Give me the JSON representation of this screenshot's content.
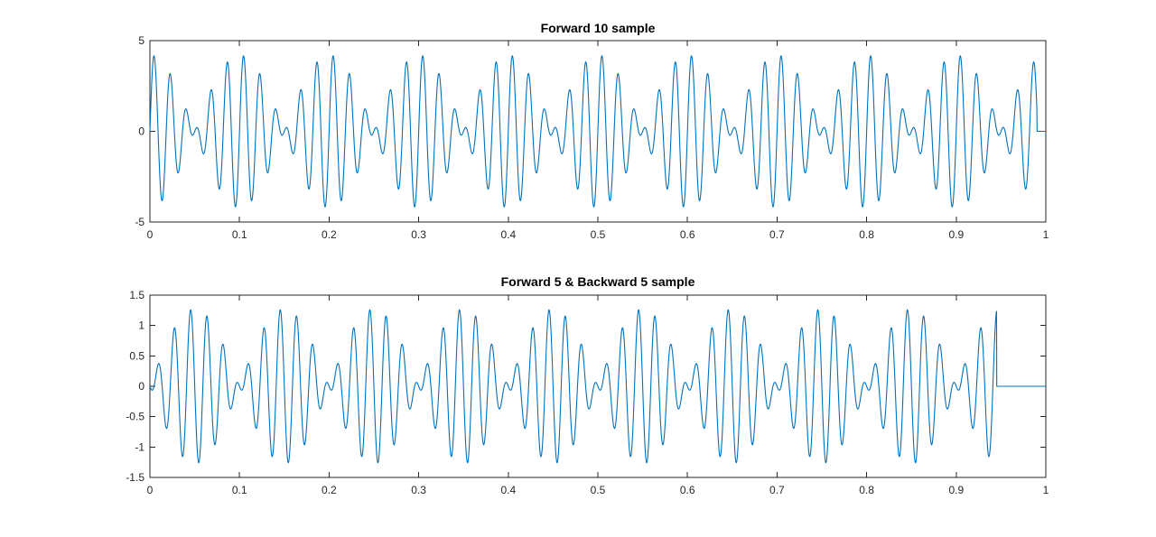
{
  "figure": {
    "background": "#ffffff"
  },
  "chart_data": [
    {
      "type": "line",
      "title": "Forward 10 sample",
      "xlabel": "",
      "ylabel": "",
      "xlim": [
        0,
        1
      ],
      "ylim": [
        -5,
        5
      ],
      "xticks": [
        "0",
        "0.1",
        "0.2",
        "0.3",
        "0.4",
        "0.5",
        "0.6",
        "0.7",
        "0.8",
        "0.9",
        "1"
      ],
      "yticks": [
        "-5",
        "0",
        "5"
      ],
      "grid": false,
      "series": [
        {
          "color": "#0072bd",
          "signal": "sum of sinusoids (approx. 50 Hz + 60 Hz beating, period 0.1)",
          "peaks_within_period": [
            3.5,
            2.3,
            2.3,
            3.5,
            4.2,
            3.5,
            2.3,
            2.3,
            3.5,
            4.2
          ],
          "troughs_within_period": [
            -2.3,
            -3.5,
            -4.2,
            -3.5,
            -2.3,
            -2.3,
            -3.5,
            -4.2,
            -3.5,
            -2.3
          ],
          "zero_after_x": 0.99
        }
      ]
    },
    {
      "type": "line",
      "title": "Forward 5 & Backward 5 sample",
      "xlabel": "",
      "ylabel": "",
      "xlim": [
        0,
        1
      ],
      "ylim": [
        -1.5,
        1.5
      ],
      "xticks": [
        "0",
        "0.1",
        "0.2",
        "0.3",
        "0.4",
        "0.5",
        "0.6",
        "0.7",
        "0.8",
        "0.9",
        "1"
      ],
      "yticks": [
        "-1.5",
        "-1",
        "-0.5",
        "0",
        "0.5",
        "1",
        "1.5"
      ],
      "grid": false,
      "series": [
        {
          "color": "#0072bd",
          "signal": "difference of sinusoids (beat pattern, period 0.1)",
          "peaks_within_period": [
            0.1,
            0.12,
            0.85,
            1.27,
            0.8,
            0.1,
            0.12,
            0.85,
            1.27,
            0.8
          ],
          "troughs_within_period": [
            -0.8,
            -1.27,
            -0.85,
            -0.12,
            -0.1,
            -0.8,
            -1.27,
            -0.85,
            -0.12,
            -0.1
          ],
          "zero_after_x": 0.945
        }
      ]
    }
  ]
}
